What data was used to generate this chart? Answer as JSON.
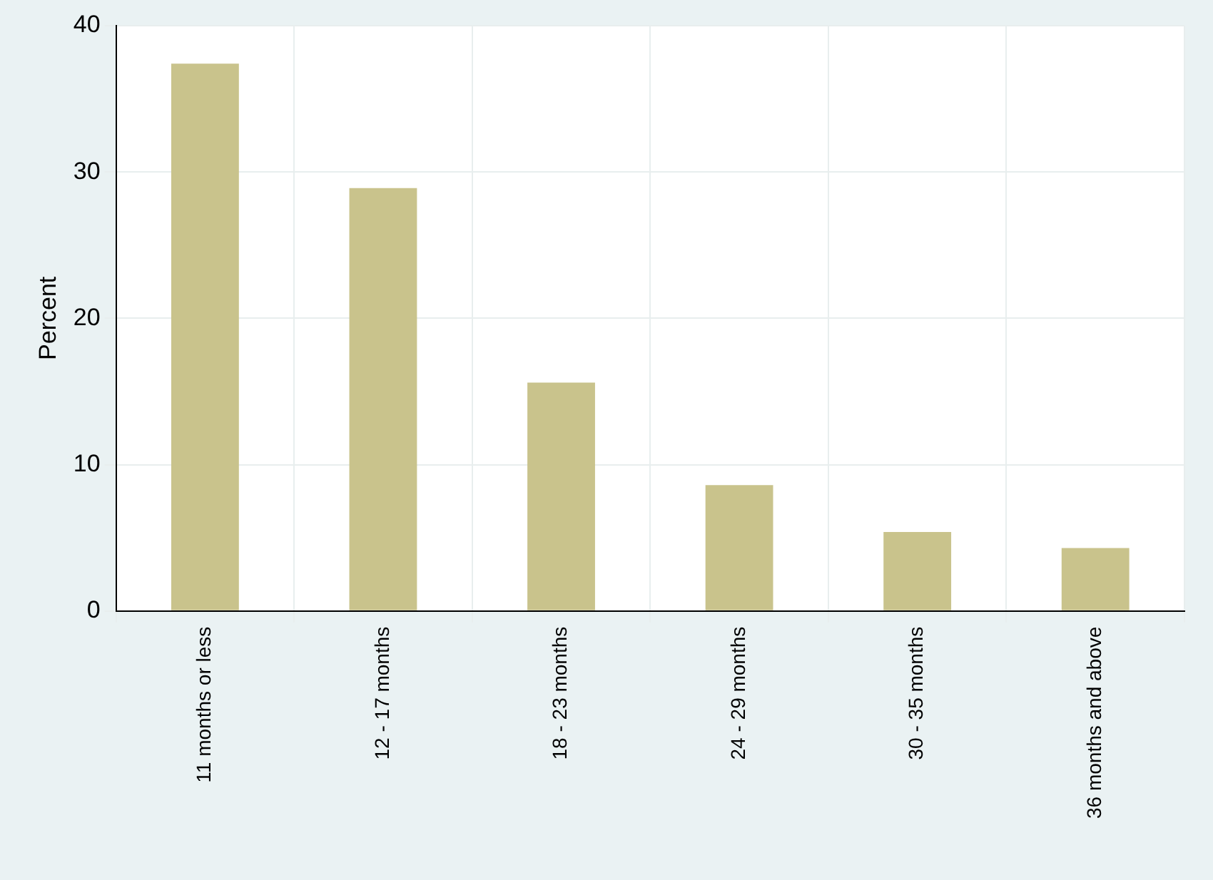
{
  "chart_data": {
    "type": "bar",
    "ylabel": "Percent",
    "categories": [
      "11 months or less",
      "12 - 17 months",
      "18 - 23 months",
      "24 - 29 months",
      "30 - 35 months",
      "36 months and above"
    ],
    "values": [
      37.4,
      28.9,
      15.6,
      8.6,
      5.4,
      4.3
    ],
    "color": "#c9c38c",
    "ylim": [
      0,
      40
    ],
    "yticks": [
      0,
      10,
      20,
      30,
      40
    ],
    "grid": true
  }
}
